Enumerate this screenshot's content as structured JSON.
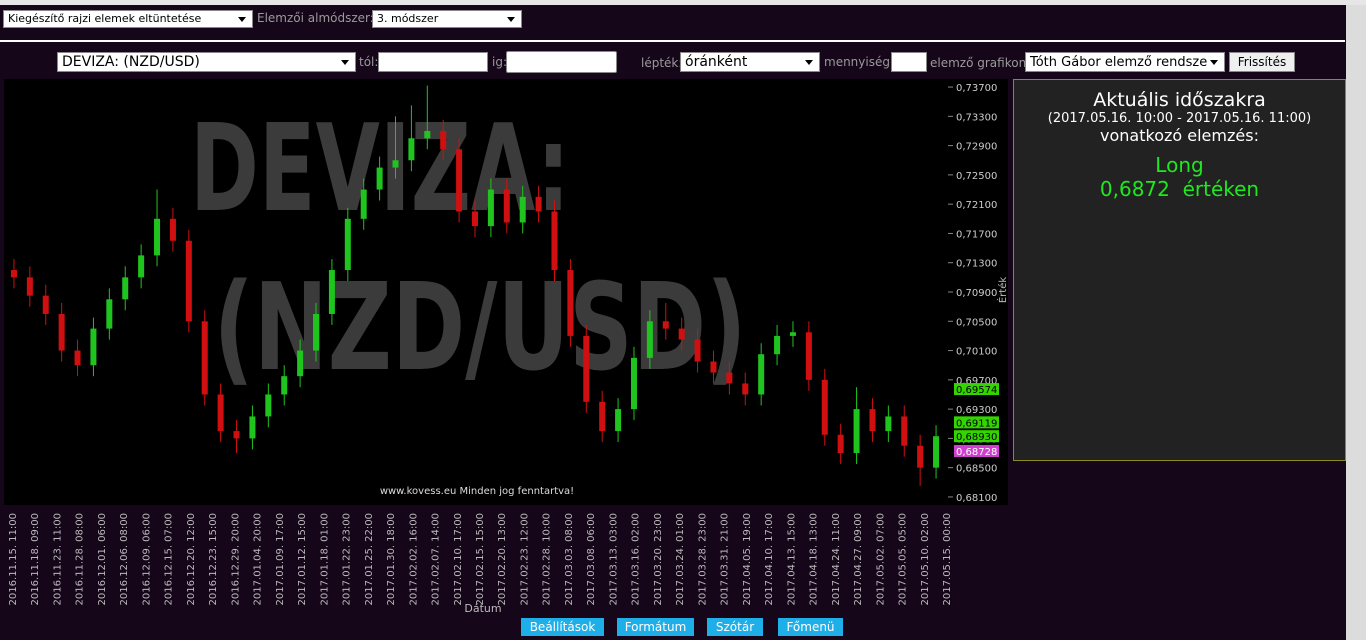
{
  "toolbar": {
    "hide_select": "Kiegészítő rajzi elemek eltüntetése",
    "submethod_label": "Elemzői almódszer:",
    "submethod_select": "3. módszer"
  },
  "filters": {
    "instrument": "DEVIZA: (NZD/USD)",
    "from_label": "tól:",
    "to_label": "ig:",
    "scale_label": "lépték:",
    "scale": "óránként",
    "quantity_label": "mennyiség:",
    "chart_label": "elemző grafikon:",
    "chart": "Tóth Gábor elemző rendsze",
    "refresh": "Frissítés"
  },
  "chart_data": {
    "type": "candlestick",
    "watermark": [
      "DEVIZA:",
      "(NZD/USD)"
    ],
    "copyright": "www.kovess.eu Minden jog fenntartva!",
    "y_label": "Érték",
    "x_label": "Dátum",
    "up_color": "#1fc41f",
    "down_color": "#d01010",
    "x_tick_labels": [
      "2016.11.15. 11:00",
      "2016.11.18. 09:00",
      "2016.11.23. 11:00",
      "2016.11.28. 08:00",
      "2016.12.01. 06:00",
      "2016.12.06. 08:00",
      "2016.12.09. 06:00",
      "2016.12.15. 07:00",
      "2016.12.20. 12:00",
      "2016.12.23. 15:00",
      "2016.12.29. 20:00",
      "2017.01.04. 20:00",
      "2017.01.09. 17:00",
      "2017.01.12. 15:00",
      "2017.01.18. 01:00",
      "2017.01.22. 23:00",
      "2017.01.25. 22:00",
      "2017.01.30. 18:00",
      "2017.02.02. 16:00",
      "2017.02.07. 14:00",
      "2017.02.10. 17:00",
      "2017.02.15. 15:00",
      "2017.02.20. 13:00",
      "2017.02.23. 12:00",
      "2017.02.28. 10:00",
      "2017.03.03. 08:00",
      "2017.03.08. 06:00",
      "2017.03.13. 03:00",
      "2017.03.16. 02:00",
      "2017.03.20. 23:00",
      "2017.03.24. 01:00",
      "2017.03.28. 23:00",
      "2017.03.31. 21:00",
      "2017.04.05. 19:00",
      "2017.04.10. 17:00",
      "2017.04.13. 15:00",
      "2017.04.18. 13:00",
      "2017.04.24. 11:00",
      "2017.04.27. 09:00",
      "2017.05.02. 07:00",
      "2017.05.05. 05:00",
      "2017.05.10. 02:00",
      "2017.05.15. 00:00"
    ],
    "ylim": [
      0.6799,
      0.7381
    ],
    "yticks": [
      {
        "value": 0.681,
        "label": "0,68100"
      },
      {
        "value": 0.685,
        "label": "0,68500"
      },
      {
        "value": 0.689,
        "label": "0,68900"
      },
      {
        "value": 0.693,
        "label": "0,69300"
      },
      {
        "value": 0.697,
        "label": "0,69700"
      },
      {
        "value": 0.701,
        "label": "0,70100"
      },
      {
        "value": 0.705,
        "label": "0,70500"
      },
      {
        "value": 0.709,
        "label": "0,70900"
      },
      {
        "value": 0.713,
        "label": "0,71300"
      },
      {
        "value": 0.717,
        "label": "0,71700"
      },
      {
        "value": 0.721,
        "label": "0,72100"
      },
      {
        "value": 0.725,
        "label": "0,72500"
      },
      {
        "value": 0.729,
        "label": "0,72900"
      },
      {
        "value": 0.733,
        "label": "0,73300"
      },
      {
        "value": 0.737,
        "label": "0,73700"
      }
    ],
    "open": [
      0.712,
      0.711,
      0.7085,
      0.706,
      0.701,
      0.699,
      0.704,
      0.708,
      0.711,
      0.714,
      0.719,
      0.716,
      0.705,
      0.695,
      0.69,
      0.689,
      0.692,
      0.695,
      0.6975,
      0.701,
      0.706,
      0.712,
      0.719,
      0.723,
      0.726,
      0.727,
      0.73,
      0.731,
      0.7285,
      0.72,
      0.718,
      0.723,
      0.7185,
      0.722,
      0.72,
      0.712,
      0.703,
      0.694,
      0.69,
      0.693,
      0.7,
      0.705,
      0.704,
      0.7025,
      0.6995,
      0.698,
      0.6965,
      0.695,
      0.7005,
      0.703,
      0.7035,
      0.697,
      0.6895,
      0.687,
      0.693,
      0.69,
      0.692,
      0.688,
      0.685
    ],
    "high": [
      0.7135,
      0.7125,
      0.71,
      0.7075,
      0.7025,
      0.7055,
      0.7095,
      0.7125,
      0.7155,
      0.723,
      0.7205,
      0.7175,
      0.7065,
      0.6965,
      0.6915,
      0.6935,
      0.6965,
      0.699,
      0.7025,
      0.7075,
      0.7135,
      0.7205,
      0.7245,
      0.7275,
      0.733,
      0.7345,
      0.7372,
      0.7325,
      0.73,
      0.7215,
      0.7245,
      0.7245,
      0.7235,
      0.7235,
      0.7215,
      0.7135,
      0.7045,
      0.6955,
      0.6945,
      0.7015,
      0.7065,
      0.7075,
      0.7055,
      0.704,
      0.701,
      0.6995,
      0.698,
      0.702,
      0.7045,
      0.705,
      0.705,
      0.6985,
      0.691,
      0.696,
      0.6945,
      0.6935,
      0.6935,
      0.6895,
      0.6908
    ],
    "low": [
      0.7095,
      0.707,
      0.7045,
      0.6995,
      0.6975,
      0.6975,
      0.7025,
      0.7065,
      0.7095,
      0.7125,
      0.7145,
      0.7035,
      0.6935,
      0.6885,
      0.687,
      0.6875,
      0.6905,
      0.6935,
      0.696,
      0.6995,
      0.7045,
      0.7105,
      0.7175,
      0.7215,
      0.7245,
      0.7255,
      0.7285,
      0.727,
      0.7185,
      0.7165,
      0.7165,
      0.717,
      0.717,
      0.7185,
      0.7105,
      0.7015,
      0.6925,
      0.6885,
      0.6885,
      0.6915,
      0.6985,
      0.7025,
      0.701,
      0.698,
      0.6965,
      0.695,
      0.6935,
      0.6935,
      0.699,
      0.7015,
      0.6955,
      0.688,
      0.6855,
      0.6855,
      0.6885,
      0.6885,
      0.6865,
      0.6825,
      0.6835
    ],
    "close": [
      0.711,
      0.7085,
      0.706,
      0.701,
      0.699,
      0.704,
      0.708,
      0.711,
      0.714,
      0.719,
      0.716,
      0.705,
      0.695,
      0.69,
      0.689,
      0.692,
      0.695,
      0.6975,
      0.701,
      0.706,
      0.712,
      0.719,
      0.723,
      0.726,
      0.727,
      0.73,
      0.731,
      0.7285,
      0.72,
      0.718,
      0.723,
      0.7185,
      0.722,
      0.72,
      0.712,
      0.703,
      0.694,
      0.69,
      0.693,
      0.7,
      0.705,
      0.704,
      0.7025,
      0.6995,
      0.698,
      0.6965,
      0.695,
      0.7005,
      0.703,
      0.7035,
      0.697,
      0.6895,
      0.687,
      0.693,
      0.69,
      0.692,
      0.688,
      0.685,
      0.6893
    ],
    "price_markers": [
      {
        "value": 0.69574,
        "label": "0,69574",
        "color": "#33d400"
      },
      {
        "value": 0.69119,
        "label": "0,69119",
        "color": "#33d400"
      },
      {
        "value": 0.6893,
        "label": "0,68930",
        "color": "#33d400"
      },
      {
        "value": 0.68728,
        "label": "0,68728",
        "color": "#d040d0"
      }
    ]
  },
  "analysis": {
    "title": "Aktuális időszakra",
    "period": "(2017.05.16. 10:00 - 2017.05.16. 11:00)",
    "subtitle": "vonatkozó elemzés:",
    "signal": "Long",
    "price_text": "0,6872  értéken"
  },
  "footer": {
    "buttons": [
      "Beállítások",
      "Formátum",
      "Szótár",
      "Főmenü"
    ]
  }
}
